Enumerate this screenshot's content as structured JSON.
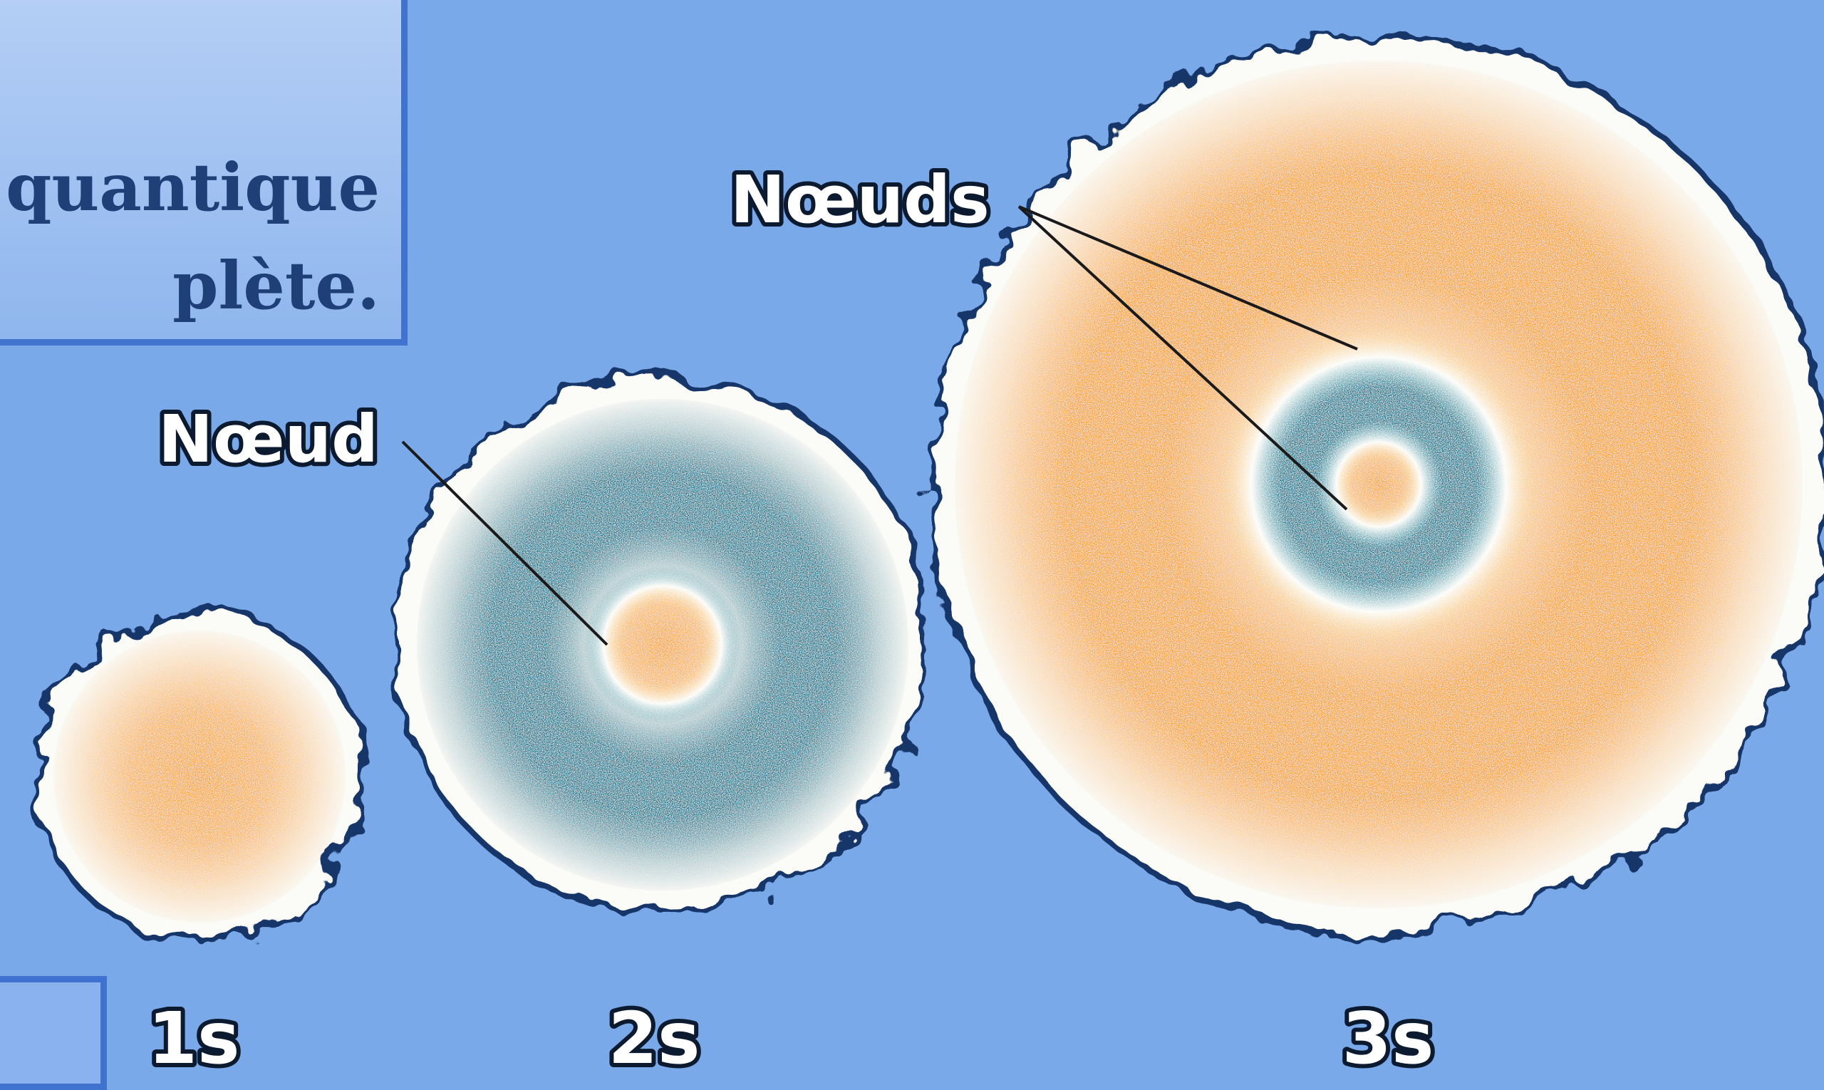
{
  "title": {
    "line1": "e quantique",
    "line2": "plète."
  },
  "annotations": {
    "node_single": "Nœud",
    "nodes_plural": "Nœuds"
  },
  "orbitals": [
    {
      "label": "1s",
      "shell": "1s"
    },
    {
      "label": "2s",
      "shell": "2s"
    },
    {
      "label": "3s",
      "shell": "3s"
    }
  ],
  "colors": {
    "background": "#7aa9ea",
    "panel_border": "#3f73cf",
    "positive_phase": "#f5a12a",
    "negative_phase": "#177a90",
    "cloud_outline": "#173468",
    "cloud_fill": "#fbfbf7"
  }
}
